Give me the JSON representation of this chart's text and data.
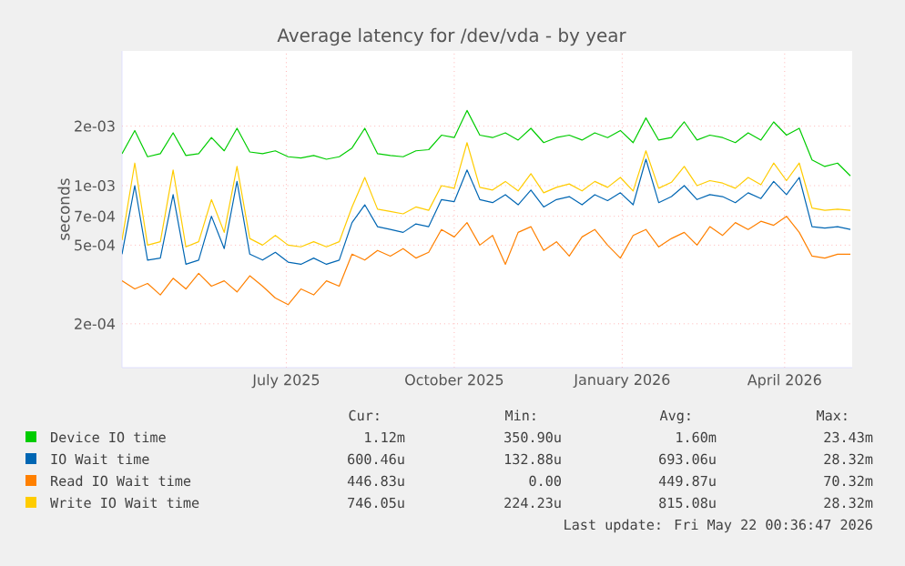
{
  "chart_data": {
    "type": "line",
    "title": "Average latency for /dev/vda - by year",
    "ylabel": "seconds",
    "log": "y",
    "grid": true,
    "legend": "bottom",
    "marker": "none",
    "line_style": "solid",
    "xlim": [
      "2025-04-17",
      "2026-05-22"
    ],
    "xticks": [
      {
        "value": "2025-07-16",
        "label": "July 2025"
      },
      {
        "value": "2025-10-16",
        "label": "October 2025"
      },
      {
        "value": "2026-01-16",
        "label": "January 2026"
      },
      {
        "value": "2026-04-15",
        "label": "April 2026"
      }
    ],
    "ylim": [
      0.00012,
      0.0048
    ],
    "yticks": [
      {
        "value": 0.0002,
        "label": "2e-04"
      },
      {
        "value": 0.0005,
        "label": "5e-04"
      },
      {
        "value": 0.0007,
        "label": "7e-04"
      },
      {
        "value": 0.001,
        "label": "1e-03"
      },
      {
        "value": 0.002,
        "label": "2e-03"
      }
    ],
    "x": [
      "2025-04-17",
      "2025-04-24",
      "2025-05-01",
      "2025-05-08",
      "2025-05-15",
      "2025-05-22",
      "2025-05-29",
      "2025-06-05",
      "2025-06-12",
      "2025-06-19",
      "2025-06-26",
      "2025-07-03",
      "2025-07-10",
      "2025-07-17",
      "2025-07-24",
      "2025-07-31",
      "2025-08-07",
      "2025-08-14",
      "2025-08-21",
      "2025-08-28",
      "2025-09-04",
      "2025-09-11",
      "2025-09-18",
      "2025-09-25",
      "2025-10-02",
      "2025-10-09",
      "2025-10-16",
      "2025-10-23",
      "2025-10-30",
      "2025-11-06",
      "2025-11-13",
      "2025-11-20",
      "2025-11-27",
      "2025-12-04",
      "2025-12-11",
      "2025-12-18",
      "2025-12-25",
      "2026-01-01",
      "2026-01-08",
      "2026-01-15",
      "2026-01-22",
      "2026-01-29",
      "2026-02-05",
      "2026-02-12",
      "2026-02-19",
      "2026-02-26",
      "2026-03-05",
      "2026-03-12",
      "2026-03-19",
      "2026-03-26",
      "2026-04-02",
      "2026-04-09",
      "2026-04-16",
      "2026-04-23",
      "2026-04-30",
      "2026-05-07",
      "2026-05-14",
      "2026-05-21"
    ],
    "series": [
      {
        "name": "Device IO time",
        "color": "#00cc00",
        "values": [
          0.00145,
          0.0019,
          0.0014,
          0.00145,
          0.00185,
          0.00142,
          0.00145,
          0.00175,
          0.0015,
          0.00195,
          0.00148,
          0.00145,
          0.0015,
          0.0014,
          0.00138,
          0.00142,
          0.00136,
          0.0014,
          0.00155,
          0.00195,
          0.00145,
          0.00142,
          0.0014,
          0.0015,
          0.00152,
          0.0018,
          0.00175,
          0.0024,
          0.0018,
          0.00175,
          0.00185,
          0.0017,
          0.00195,
          0.00165,
          0.00175,
          0.0018,
          0.0017,
          0.00185,
          0.00175,
          0.0019,
          0.00165,
          0.0022,
          0.0017,
          0.00175,
          0.0021,
          0.0017,
          0.0018,
          0.00175,
          0.00165,
          0.00185,
          0.0017,
          0.0021,
          0.0018,
          0.00195,
          0.00135,
          0.00125,
          0.0013,
          0.00112
        ]
      },
      {
        "name": "IO Wait time",
        "color": "#0066b3",
        "values": [
          0.00045,
          0.001,
          0.00042,
          0.00043,
          0.0009,
          0.0004,
          0.00042,
          0.0007,
          0.00048,
          0.00105,
          0.00045,
          0.00042,
          0.00046,
          0.00041,
          0.0004,
          0.00043,
          0.0004,
          0.00042,
          0.00065,
          0.0008,
          0.00062,
          0.0006,
          0.00058,
          0.00064,
          0.00062,
          0.00085,
          0.00083,
          0.0012,
          0.00085,
          0.00082,
          0.0009,
          0.0008,
          0.00095,
          0.00078,
          0.00085,
          0.00088,
          0.0008,
          0.0009,
          0.00084,
          0.00092,
          0.0008,
          0.00136,
          0.00082,
          0.00088,
          0.001,
          0.00085,
          0.0009,
          0.00088,
          0.00082,
          0.00092,
          0.00086,
          0.00105,
          0.0009,
          0.0011,
          0.00062,
          0.00061,
          0.00062,
          0.0006
        ]
      },
      {
        "name": "Read IO Wait time",
        "color": "#ff8000",
        "values": [
          0.00033,
          0.0003,
          0.00032,
          0.00028,
          0.00034,
          0.0003,
          0.00036,
          0.00031,
          0.00033,
          0.00029,
          0.00035,
          0.00031,
          0.00027,
          0.00025,
          0.0003,
          0.00028,
          0.00033,
          0.00031,
          0.00045,
          0.00042,
          0.00047,
          0.00044,
          0.00048,
          0.00043,
          0.00046,
          0.0006,
          0.00055,
          0.00065,
          0.0005,
          0.00056,
          0.0004,
          0.00058,
          0.00062,
          0.00047,
          0.00052,
          0.00044,
          0.00055,
          0.0006,
          0.0005,
          0.00043,
          0.00056,
          0.0006,
          0.00049,
          0.00054,
          0.00058,
          0.0005,
          0.00062,
          0.00056,
          0.00065,
          0.0006,
          0.00066,
          0.00063,
          0.0007,
          0.00058,
          0.00044,
          0.00043,
          0.00045,
          0.00045
        ]
      },
      {
        "name": "Write IO Wait time",
        "color": "#ffcc00",
        "values": [
          0.00053,
          0.0013,
          0.0005,
          0.00052,
          0.0012,
          0.00049,
          0.00052,
          0.00085,
          0.00058,
          0.00125,
          0.00054,
          0.0005,
          0.00056,
          0.0005,
          0.00049,
          0.00052,
          0.00049,
          0.00052,
          0.00078,
          0.0011,
          0.00076,
          0.00074,
          0.00072,
          0.00078,
          0.00075,
          0.001,
          0.00097,
          0.00165,
          0.00098,
          0.00095,
          0.00105,
          0.00094,
          0.00115,
          0.00092,
          0.00098,
          0.00102,
          0.00094,
          0.00105,
          0.00098,
          0.0011,
          0.00094,
          0.0015,
          0.00097,
          0.00104,
          0.00125,
          0.001,
          0.00106,
          0.00103,
          0.00097,
          0.0011,
          0.00101,
          0.0013,
          0.00106,
          0.0013,
          0.00077,
          0.00075,
          0.00076,
          0.00075
        ]
      }
    ],
    "annotations": [
      "Cur:",
      "Min:",
      "Avg:",
      "Max:",
      "1.12m",
      "350.90u",
      "1.60m",
      "23.43m",
      "600.46u",
      "132.88u",
      "693.06u",
      "28.32m",
      "446.83u",
      "0.00",
      "449.87u",
      "70.32m",
      "746.05u",
      "224.23u",
      "815.08u",
      "28.32m",
      "Last update: Fri May 22 00:36:47 2026"
    ]
  }
}
